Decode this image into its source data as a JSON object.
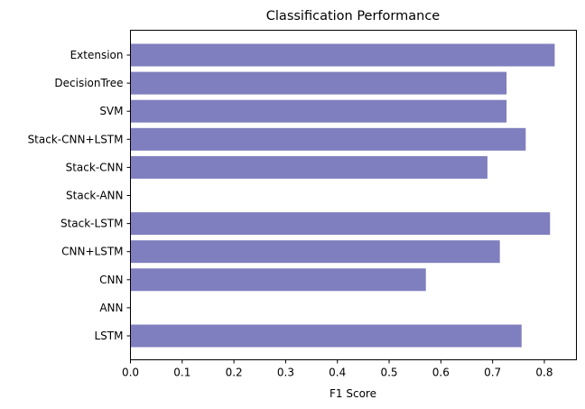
{
  "chart_data": {
    "type": "bar",
    "orientation": "horizontal",
    "title": "Classification Performance",
    "xlabel": "F1 Score",
    "ylabel": "",
    "xlim": [
      0,
      0.862
    ],
    "xticks": [
      "0.0",
      "0.1",
      "0.2",
      "0.3",
      "0.4",
      "0.5",
      "0.6",
      "0.7",
      "0.8"
    ],
    "grid": false,
    "legend": "none",
    "bar_color": "#7f7fbf",
    "categories": [
      "LSTM",
      "ANN",
      "CNN",
      "CNN+LSTM",
      "Stack-LSTM",
      "Stack-ANN",
      "Stack-CNN",
      "Stack-CNN+LSTM",
      "SVM",
      "DecisionTree",
      "Extension"
    ],
    "values": [
      0.756,
      0,
      0.571,
      0.714,
      0.811,
      0,
      0.69,
      0.764,
      0.727,
      0.727,
      0.82
    ]
  }
}
